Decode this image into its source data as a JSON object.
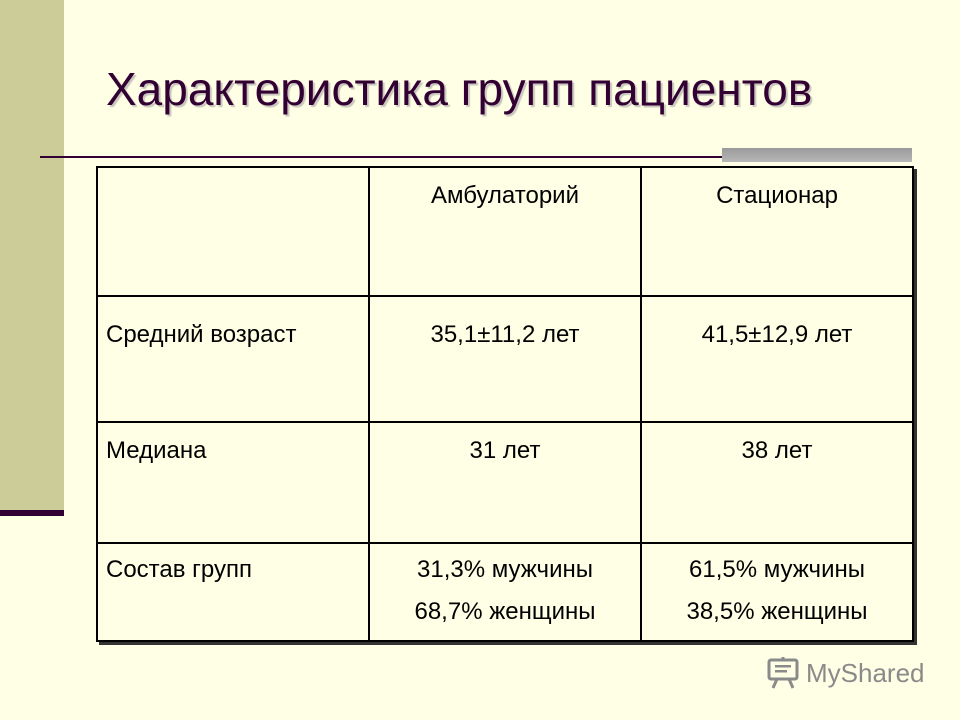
{
  "slide": {
    "title": "Характеристика групп пациентов"
  },
  "table": {
    "headers": [
      "",
      "Амбулаторий",
      "Стационар"
    ],
    "rows": [
      {
        "label": "Средний возраст",
        "ambulatory": "35,1±11,2 лет",
        "hospital": "41,5±12,9 лет"
      },
      {
        "label": "Медиана",
        "ambulatory": "31 лет",
        "hospital": "38 лет"
      },
      {
        "label": "Состав групп",
        "ambulatory": {
          "line1": "31,3% мужчины",
          "line2": "68,7% женщины"
        },
        "hospital": {
          "line1": "61,5% мужчины",
          "line2": "38,5% женщины"
        }
      }
    ]
  },
  "watermark": {
    "text": "MyShared",
    "icon": "presentation-board-icon"
  },
  "colors": {
    "background": "#ffffe6",
    "sidebar": "#cccc99",
    "accent": "#330033",
    "watermark": "#8a8a8a"
  }
}
